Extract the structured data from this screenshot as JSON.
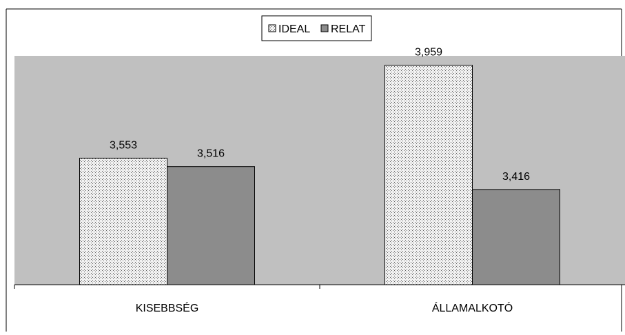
{
  "chart_data": {
    "type": "bar",
    "categories": [
      "KISEBBSÉG",
      "ÁLLAMALKOTÓ"
    ],
    "series": [
      {
        "name": "IDEAL",
        "values": [
          3.553,
          3.959
        ],
        "value_labels": [
          "3,553",
          "3,959"
        ],
        "fill": "#d9d9d9",
        "pattern": "dotted"
      },
      {
        "name": "RELAT",
        "values": [
          3.516,
          3.416
        ],
        "value_labels": [
          "3,516",
          "3,416"
        ],
        "fill": "#8c8c8c",
        "pattern": "solid"
      }
    ],
    "ylim": [
      3.0,
      4.0
    ],
    "grid": false,
    "legend_position": "top-center",
    "plot_background": "#c0c0c0"
  }
}
